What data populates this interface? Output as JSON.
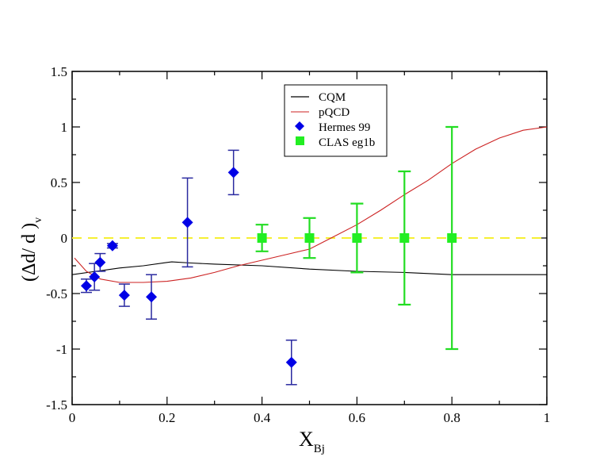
{
  "chart_data": {
    "type": "scatter",
    "xlabel": "X",
    "xlabel_sub": "Bj",
    "ylabel": "(Δd/ d )",
    "ylabel_sub": "v",
    "xlim": [
      0,
      1
    ],
    "ylim": [
      -1.5,
      1.5
    ],
    "x_ticks": [
      "0",
      "0.2",
      "0.4",
      "0.6",
      "0.8",
      "1"
    ],
    "y_ticks": [
      "-1.5",
      "-1",
      "-0.5",
      "0",
      "0.5",
      "1",
      "1.5"
    ],
    "grid": false,
    "legend_position": "top-center",
    "reference_line": {
      "y": 0,
      "color": "#f5f032",
      "style": "dashed"
    },
    "series": [
      {
        "name": "CQM",
        "kind": "line",
        "color": "#000000",
        "x": [
          0,
          0.05,
          0.1,
          0.15,
          0.2,
          0.21,
          0.25,
          0.3,
          0.4,
          0.5,
          0.6,
          0.7,
          0.8,
          0.9,
          1.0
        ],
        "y": [
          -0.33,
          -0.3,
          -0.27,
          -0.25,
          -0.22,
          -0.215,
          -0.225,
          -0.235,
          -0.25,
          -0.28,
          -0.3,
          -0.31,
          -0.33,
          -0.33,
          -0.33
        ]
      },
      {
        "name": "pQCD",
        "kind": "line",
        "color": "#cc2222",
        "x": [
          0.005,
          0.03,
          0.06,
          0.1,
          0.15,
          0.2,
          0.25,
          0.3,
          0.35,
          0.4,
          0.45,
          0.5,
          0.55,
          0.6,
          0.65,
          0.7,
          0.75,
          0.8,
          0.85,
          0.9,
          0.95,
          1.0
        ],
        "y": [
          -0.18,
          -0.3,
          -0.37,
          -0.4,
          -0.4,
          -0.39,
          -0.36,
          -0.31,
          -0.25,
          -0.2,
          -0.15,
          -0.1,
          0.01,
          0.12,
          0.25,
          0.39,
          0.52,
          0.67,
          0.8,
          0.9,
          0.97,
          1.0
        ]
      },
      {
        "name": "Hermes 99",
        "kind": "points",
        "marker": "diamond",
        "color": "#0000e6",
        "errcolor": "#2a2aa0",
        "x": [
          0.03,
          0.047,
          0.059,
          0.085,
          0.11,
          0.167,
          0.243,
          0.34,
          0.462
        ],
        "y": [
          -0.43,
          -0.35,
          -0.22,
          -0.07,
          -0.515,
          -0.53,
          0.14,
          0.59,
          -1.12
        ],
        "err": [
          0.06,
          0.12,
          0.08,
          0.02,
          0.1,
          0.2,
          0.4,
          0.2,
          0.2
        ]
      },
      {
        "name": "CLAS eg1b",
        "kind": "points",
        "marker": "square",
        "color": "#22ee22",
        "errcolor": "#22dd22",
        "x": [
          0.4,
          0.5,
          0.6,
          0.7,
          0.8
        ],
        "y": [
          0,
          0,
          0,
          0,
          0
        ],
        "err": [
          0.12,
          0.18,
          0.31,
          0.6,
          1.0
        ]
      }
    ]
  }
}
